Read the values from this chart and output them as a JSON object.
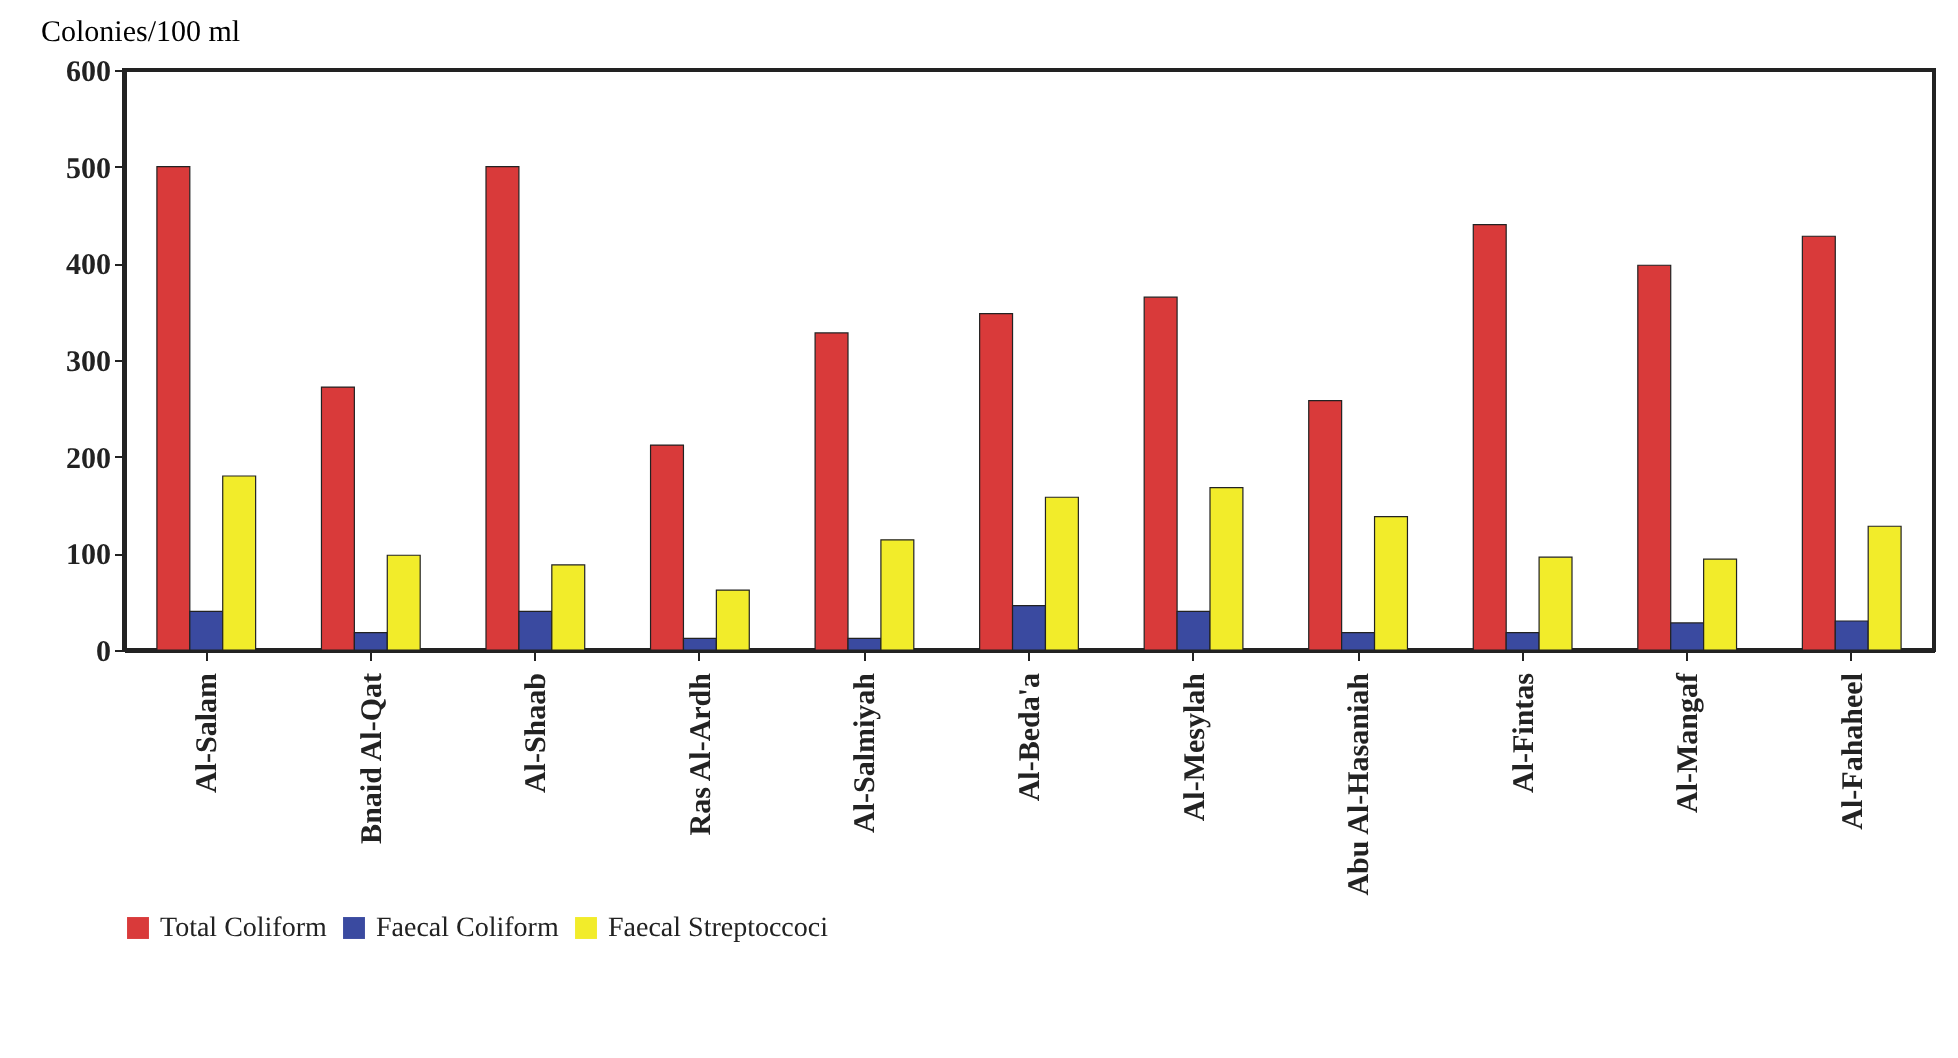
{
  "chart_data": {
    "type": "bar",
    "ylabel": "Colonies/100 ml",
    "categories": [
      "Al-Salam",
      "Bnaid Al-Qat",
      "Al-Shaab",
      "Ras Al-Ardh",
      "Al-Salmiyah",
      "Al-Beda'a",
      "Al-Mesylah",
      "Abu Al-Hasaniah",
      "Al-Fintas",
      "Al-Mangaf",
      "Al-Fahaheel"
    ],
    "series": [
      {
        "name": "Total Coliform",
        "color": "#d93a3a",
        "values": [
          500,
          272,
          500,
          212,
          328,
          348,
          365,
          258,
          440,
          398,
          428
        ]
      },
      {
        "name": "Faecal Coliform",
        "color": "#3a4aa0",
        "values": [
          40,
          18,
          40,
          12,
          12,
          46,
          40,
          18,
          18,
          28,
          30
        ]
      },
      {
        "name": "Faecal Streptoccoci",
        "color": "#f2ec2a",
        "values": [
          180,
          98,
          88,
          62,
          114,
          158,
          168,
          138,
          96,
          94,
          128
        ]
      }
    ],
    "ylim": [
      0,
      600
    ],
    "yticks": [
      0,
      100,
      200,
      300,
      400,
      500,
      600
    ],
    "grid": false,
    "legend": "bottom"
  }
}
